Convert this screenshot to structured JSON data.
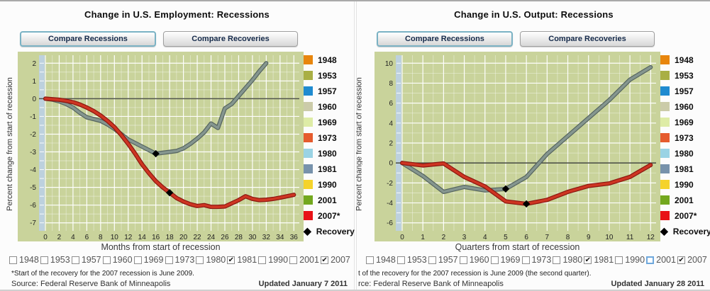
{
  "theme": {
    "plot_bg": "#C9D39B",
    "grid_minor": "rgba(255,255,255,0.45)",
    "grid_major": "rgba(255,255,255,0.95)",
    "axis_strip": "#BDD1DE",
    "zero_line": "#50544A",
    "tick_text": "#222222",
    "active_button_border": "#7AB2C4",
    "checkbox_focus_border": "#6FA8DC"
  },
  "legend": [
    {
      "label": "1948",
      "color": "#E8860D"
    },
    {
      "label": "1953",
      "color": "#A9AF44"
    },
    {
      "label": "1957",
      "color": "#1F8BD0"
    },
    {
      "label": "1960",
      "color": "#CBCBA9"
    },
    {
      "label": "1969",
      "color": "#DEECA6"
    },
    {
      "label": "1973",
      "color": "#E55B2D"
    },
    {
      "label": "1980",
      "color": "#9AD3E4"
    },
    {
      "label": "1981",
      "color": "#7792AB"
    },
    {
      "label": "1990",
      "color": "#F5D32B"
    },
    {
      "label": "2001",
      "color": "#73A81E"
    },
    {
      "label": "2007*",
      "color": "#E81216"
    },
    {
      "label": "Recovery",
      "marker": "diamond",
      "color": "#000000"
    }
  ],
  "panels": [
    {
      "title": "Change in U.S. Employment: Recessions",
      "buttons": {
        "recessions": "Compare Recessions",
        "recoveries": "Compare Recoveries"
      },
      "chart_data": {
        "type": "line",
        "title": "Change in U.S. Employment: Recessions",
        "xlabel": "Months from start of recession",
        "ylabel": "Percent change from start of recession",
        "xlim": [
          0,
          36
        ],
        "ylim": [
          -7,
          2
        ],
        "x_ticks": [
          0,
          2,
          4,
          6,
          8,
          10,
          12,
          14,
          16,
          18,
          20,
          22,
          24,
          26,
          28,
          30,
          32,
          34,
          36
        ],
        "y_ticks": [
          2,
          1,
          0,
          -1,
          -2,
          -3,
          -4,
          -5,
          -6,
          -7
        ],
        "grid": {
          "x_minor": 1,
          "x_major": 2,
          "y_minor": 0.5,
          "y_major": 1
        },
        "series": [
          {
            "name": "1981",
            "color": "#85968F",
            "edge": "#55645F",
            "y": [
              0,
              -0.05,
              -0.15,
              -0.3,
              -0.5,
              -0.8,
              -1.05,
              -1.15,
              -1.25,
              -1.45,
              -1.7,
              -2.0,
              -2.3,
              -2.5,
              -2.7,
              -2.9,
              -3.1,
              -3.05,
              -3.0,
              -2.95,
              -2.8,
              -2.55,
              -2.25,
              -1.9,
              -1.4,
              -1.65,
              -0.55,
              -0.3,
              0.15,
              0.6,
              1.05,
              1.55,
              2.0
            ]
          },
          {
            "name": "2007",
            "color": "#CE3522",
            "edge": "#8A1710",
            "y": [
              0,
              -0.03,
              -0.06,
              -0.12,
              -0.2,
              -0.33,
              -0.5,
              -0.7,
              -0.95,
              -1.25,
              -1.6,
              -2.05,
              -2.55,
              -3.1,
              -3.7,
              -4.2,
              -4.65,
              -5.0,
              -5.3,
              -5.6,
              -5.8,
              -5.95,
              -6.05,
              -6.0,
              -6.1,
              -6.1,
              -6.08,
              -5.9,
              -5.72,
              -5.5,
              -5.65,
              -5.72,
              -5.7,
              -5.65,
              -5.58,
              -5.5,
              -5.42
            ]
          }
        ],
        "recovery_markers": [
          {
            "series": "1981",
            "x": 16,
            "y": -3.1
          },
          {
            "series": "2007",
            "x": 18,
            "y": -5.3
          }
        ],
        "legend_position": "right"
      },
      "checkboxes": [
        {
          "label": "1948",
          "checked": false
        },
        {
          "label": "1953",
          "checked": false
        },
        {
          "label": "1957",
          "checked": false
        },
        {
          "label": "1960",
          "checked": false
        },
        {
          "label": "1969",
          "checked": false
        },
        {
          "label": "1973",
          "checked": false
        },
        {
          "label": "1980",
          "checked": false
        },
        {
          "label": "1981",
          "checked": true
        },
        {
          "label": "1990",
          "checked": false
        },
        {
          "label": "2001",
          "checked": false
        },
        {
          "label": "2007",
          "checked": true
        }
      ],
      "footnote": "*Start of the recovery for the 2007 recession is June 2009.",
      "source": "Source: Federal Reserve Bank of Minneapolis",
      "updated": "Updated January 7 2011"
    },
    {
      "title": "Change in U.S. Output: Recessions",
      "buttons": {
        "recessions": "Compare Recessions",
        "recoveries": "Compare Recoveries"
      },
      "chart_data": {
        "type": "line",
        "title": "Change in U.S. Output: Recessions",
        "xlabel": "Quarters from start of recession",
        "ylabel": "Percent change from start of recession",
        "xlim": [
          0,
          12
        ],
        "ylim": [
          -6,
          10
        ],
        "x_ticks": [
          0,
          1,
          2,
          3,
          4,
          5,
          6,
          7,
          8,
          9,
          10,
          11,
          12
        ],
        "y_ticks": [
          10,
          8,
          6,
          4,
          2,
          0,
          -2,
          -4,
          -6
        ],
        "grid": {
          "x_minor": 0.5,
          "x_major": 1,
          "y_minor": 1,
          "y_major": 2
        },
        "series": [
          {
            "name": "1981",
            "color": "#85968F",
            "edge": "#55645F",
            "y": [
              0,
              -1.3,
              -2.9,
              -2.4,
              -2.75,
              -2.6,
              -1.4,
              0.9,
              2.7,
              4.5,
              6.3,
              8.35,
              9.6
            ]
          },
          {
            "name": "2007",
            "color": "#CE3522",
            "edge": "#8A1710",
            "y": [
              0,
              -0.25,
              -0.05,
              -1.4,
              -2.35,
              -3.85,
              -4.1,
              -3.7,
              -2.9,
              -2.3,
              -2.05,
              -1.4,
              -0.2
            ]
          }
        ],
        "recovery_markers": [
          {
            "series": "1981",
            "x": 5,
            "y": -2.6
          },
          {
            "series": "2007",
            "x": 6,
            "y": -4.1
          }
        ],
        "legend_position": "right"
      },
      "checkboxes": [
        {
          "label": "1948",
          "checked": false
        },
        {
          "label": "1953",
          "checked": false
        },
        {
          "label": "1957",
          "checked": false
        },
        {
          "label": "1960",
          "checked": false
        },
        {
          "label": "1969",
          "checked": false
        },
        {
          "label": "1973",
          "checked": false
        },
        {
          "label": "1980",
          "checked": false
        },
        {
          "label": "1981",
          "checked": true
        },
        {
          "label": "1990",
          "checked": false
        },
        {
          "label": "2001",
          "checked": false,
          "focused": true
        },
        {
          "label": "2007",
          "checked": true
        }
      ],
      "footnote": "t of the recovery for the 2007 recession is June 2009 (the second quarter).",
      "source": "rce: Federal Reserve Bank of Minneapolis",
      "updated": "Updated January 28 2011"
    }
  ]
}
